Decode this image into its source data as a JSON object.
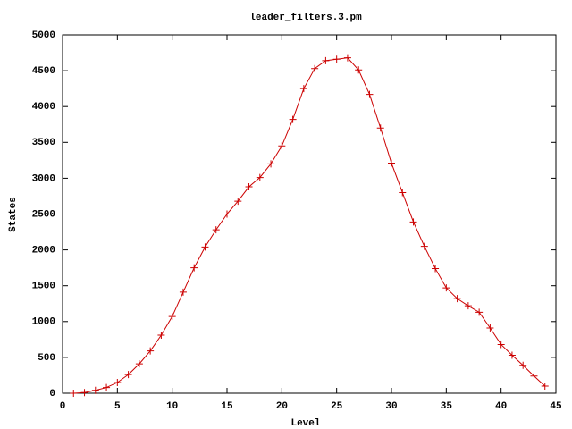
{
  "chart_data": {
    "type": "line",
    "title": "leader_filters.3.pm",
    "x_label": "Level",
    "y_label": "States",
    "x": [
      1,
      2,
      3,
      4,
      5,
      6,
      7,
      8,
      9,
      10,
      11,
      12,
      13,
      14,
      15,
      16,
      17,
      18,
      19,
      20,
      21,
      22,
      23,
      24,
      25,
      26,
      27,
      28,
      29,
      30,
      31,
      32,
      33,
      34,
      35,
      36,
      37,
      38,
      39,
      40,
      41,
      42,
      43,
      44
    ],
    "series": [
      {
        "color": "#cc0000",
        "marker": "plus",
        "values": [
          0,
          10,
          40,
          80,
          150,
          260,
          410,
          590,
          810,
          1070,
          1410,
          1750,
          2040,
          2280,
          2500,
          2680,
          2880,
          3010,
          3200,
          3450,
          3820,
          4250,
          4530,
          4640,
          4660,
          4680,
          4510,
          4170,
          3700,
          3210,
          2800,
          2390,
          2050,
          1740,
          1470,
          1320,
          1220,
          1130,
          910,
          680,
          530,
          390,
          240,
          100
        ]
      }
    ],
    "xlim": [
      0,
      45
    ],
    "xticks": [
      0,
      5,
      10,
      15,
      20,
      25,
      30,
      35,
      40,
      45
    ],
    "ylim": [
      0,
      5000
    ],
    "yticks": [
      0,
      500,
      1000,
      1500,
      2000,
      2500,
      3000,
      3500,
      4000,
      4500,
      5000
    ]
  }
}
